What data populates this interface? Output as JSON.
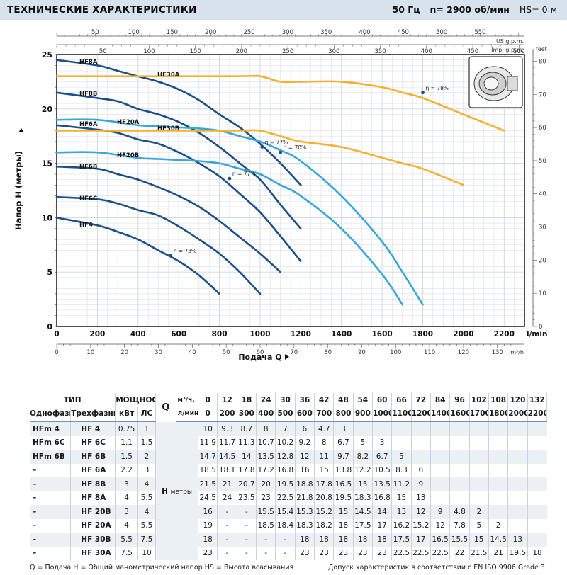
{
  "header": {
    "title": "ТЕХНИЧЕСКИЕ ХАРАКТЕРИСТИКИ",
    "freq": "50 Гц",
    "speed": "n= 2900  об/мин",
    "hs": "HS= 0 м"
  },
  "chart_data": {
    "type": "line",
    "title": "ТЕХНИЧЕСКИЕ ХАРАКТЕРИСТИКИ",
    "xlabel": "Подача Q",
    "ylabel": "Напор Н (метры)",
    "x_unit": "l/min",
    "x2_unit": "m³/h",
    "y2_unit": "feet",
    "top_axis_us_unit": "US g.p.m.",
    "top_axis_imp_unit": "Imp. g.p.m.",
    "xlim": [
      0,
      2300
    ],
    "ylim": [
      0,
      25
    ],
    "x_ticks": [
      0,
      200,
      400,
      600,
      800,
      1000,
      1200,
      1400,
      1600,
      1800,
      2000,
      2200
    ],
    "y_ticks": [
      0,
      5,
      10,
      15,
      20,
      25
    ],
    "feet_ticks": [
      0,
      10,
      20,
      30,
      40,
      50,
      60,
      70,
      80
    ],
    "m3h_ticks": [
      0,
      10,
      20,
      30,
      40,
      50,
      60,
      70,
      80,
      90,
      100,
      110,
      120,
      130
    ],
    "us_gpm_ticks": [
      50,
      100,
      150,
      200,
      250,
      300,
      350,
      400,
      450,
      500,
      550
    ],
    "imp_gpm_ticks": [
      50,
      100,
      150,
      200,
      250,
      300,
      350,
      400,
      450,
      500
    ],
    "colors": {
      "dark": "#1c4f86",
      "light": "#39a6d8",
      "orange": "#f2b12f"
    },
    "series": [
      {
        "name": "HF8A",
        "color": "dark",
        "x": [
          0,
          200,
          300,
          400,
          500,
          600,
          700,
          800,
          900,
          1000,
          1100,
          1200
        ],
        "y": [
          24.5,
          24,
          23.5,
          23,
          22.5,
          21.8,
          20.8,
          19.5,
          18.3,
          16.8,
          15,
          13
        ]
      },
      {
        "name": "HF8B",
        "color": "dark",
        "x": [
          0,
          200,
          300,
          400,
          500,
          600,
          700,
          800,
          900,
          1000,
          1100,
          1200
        ],
        "y": [
          21.5,
          21,
          20.7,
          20,
          19.5,
          18.8,
          17.8,
          16.5,
          15,
          13.5,
          11.2,
          9
        ]
      },
      {
        "name": "HF6A",
        "color": "dark",
        "x": [
          0,
          200,
          300,
          400,
          500,
          600,
          700,
          800,
          900,
          1000,
          1100,
          1200
        ],
        "y": [
          18.5,
          18.1,
          17.8,
          17.2,
          16.8,
          16,
          15,
          13.8,
          12.2,
          10.5,
          8.3,
          6
        ]
      },
      {
        "name": "HF6B",
        "color": "dark",
        "x": [
          0,
          200,
          300,
          400,
          500,
          600,
          700,
          800,
          900,
          1000,
          1100
        ],
        "y": [
          14.7,
          14.5,
          14,
          13.5,
          12.8,
          12,
          11,
          9.7,
          8.2,
          6.7,
          5
        ]
      },
      {
        "name": "HF6C",
        "color": "dark",
        "x": [
          0,
          200,
          300,
          400,
          500,
          600,
          700,
          800,
          900,
          1000
        ],
        "y": [
          11.9,
          11.7,
          11.3,
          10.7,
          10.2,
          9.2,
          8,
          6.7,
          5,
          3
        ]
      },
      {
        "name": "HF4",
        "color": "dark",
        "x": [
          0,
          200,
          300,
          400,
          500,
          600,
          700,
          800
        ],
        "y": [
          10,
          9.3,
          8.7,
          8,
          7,
          6,
          4.7,
          3
        ]
      },
      {
        "name": "HF20A",
        "color": "light",
        "x": [
          0,
          200,
          400,
          500,
          600,
          700,
          800,
          900,
          1000,
          1100,
          1200,
          1400,
          1600,
          1700,
          1800
        ],
        "y": [
          19,
          19,
          18.5,
          18.4,
          18.3,
          18.2,
          18,
          17.5,
          17,
          16.2,
          15.2,
          12,
          7.8,
          5,
          2
        ]
      },
      {
        "name": "HF20B",
        "color": "light",
        "x": [
          0,
          200,
          400,
          500,
          600,
          700,
          800,
          900,
          1000,
          1100,
          1200,
          1400,
          1600,
          1700
        ],
        "y": [
          16,
          16,
          15.5,
          15.4,
          15.3,
          15.2,
          15,
          14.5,
          14,
          13,
          12,
          9,
          4.8,
          2
        ]
      },
      {
        "name": "HF30A",
        "color": "orange",
        "x": [
          0,
          200,
          500,
          600,
          700,
          800,
          900,
          1000,
          1100,
          1200,
          1400,
          1600,
          1700,
          1800,
          2000,
          2200
        ],
        "y": [
          23,
          23,
          23,
          23,
          23,
          23,
          23,
          23,
          22.5,
          22.5,
          22.5,
          22,
          21.5,
          21,
          19.5,
          18
        ]
      },
      {
        "name": "HF30B",
        "color": "orange",
        "x": [
          0,
          200,
          700,
          800,
          900,
          1000,
          1100,
          1200,
          1400,
          1600,
          1700,
          1800,
          2000
        ],
        "y": [
          18,
          18,
          18,
          18,
          18,
          18,
          17.5,
          17,
          16.5,
          15.5,
          15,
          14.5,
          13
        ]
      }
    ],
    "efficiency_labels": [
      {
        "text": "η = 73%",
        "x": 560,
        "y": 6.5
      },
      {
        "text": "η = 77%",
        "x": 850,
        "y": 13.6
      },
      {
        "text": "η = 77%",
        "x": 1010,
        "y": 16.5
      },
      {
        "text": "η = 70%",
        "x": 1100,
        "y": 16.0
      },
      {
        "text": "η = 78%",
        "x": 1800,
        "y": 21.5
      }
    ]
  },
  "table": {
    "head": {
      "type": "ТИП",
      "power": "МОЩНОСТЬ",
      "single": "Однофазный",
      "three": "Трехфазный",
      "kw": "кВт",
      "hp": "ЛС",
      "q": "Q",
      "m3h_label": "м³/ч.",
      "lmin_label": "л/мин.",
      "h_label": "Н",
      "h_unit": "метры"
    },
    "q_m3h": [
      "0",
      "12",
      "18",
      "24",
      "30",
      "36",
      "42",
      "48",
      "54",
      "60",
      "66",
      "72",
      "84",
      "96",
      "102",
      "108",
      "120",
      "132"
    ],
    "q_lmin": [
      "0",
      "200",
      "300",
      "400",
      "500",
      "600",
      "700",
      "800",
      "900",
      "1000",
      "1100",
      "1200",
      "1400",
      "1600",
      "1700",
      "1800",
      "2000",
      "2200"
    ],
    "rows": [
      {
        "single": "HFm 4",
        "three": "HF 4",
        "kw": "0.75",
        "hp": "1",
        "h": [
          "10",
          "9.3",
          "8.7",
          "8",
          "7",
          "6",
          "4.7",
          "3",
          "",
          "",
          "",
          "",
          "",
          "",
          "",
          "",
          "",
          ""
        ]
      },
      {
        "single": "HFm 6C",
        "three": "HF 6C",
        "kw": "1.1",
        "hp": "1.5",
        "h": [
          "11.9",
          "11.7",
          "11.3",
          "10.7",
          "10.2",
          "9.2",
          "8",
          "6.7",
          "5",
          "3",
          "",
          "",
          "",
          "",
          "",
          "",
          "",
          ""
        ]
      },
      {
        "single": "HFm 6B",
        "three": "HF 6B",
        "kw": "1.5",
        "hp": "2",
        "h": [
          "14.7",
          "14.5",
          "14",
          "13.5",
          "12.8",
          "12",
          "11",
          "9.7",
          "8.2",
          "6.7",
          "5",
          "",
          "",
          "",
          "",
          "",
          "",
          ""
        ]
      },
      {
        "single": "–",
        "three": "HF 6A",
        "kw": "2.2",
        "hp": "3",
        "h": [
          "18.5",
          "18.1",
          "17.8",
          "17.2",
          "16.8",
          "16",
          "15",
          "13.8",
          "12.2",
          "10.5",
          "8.3",
          "6",
          "",
          "",
          "",
          "",
          "",
          ""
        ]
      },
      {
        "single": "–",
        "three": "HF 8B",
        "kw": "3",
        "hp": "4",
        "h": [
          "21.5",
          "21",
          "20.7",
          "20",
          "19.5",
          "18.8",
          "17.8",
          "16.5",
          "15",
          "13.5",
          "11.2",
          "9",
          "",
          "",
          "",
          "",
          "",
          ""
        ]
      },
      {
        "single": "–",
        "three": "HF 8A",
        "kw": "4",
        "hp": "5.5",
        "h": [
          "24.5",
          "24",
          "23.5",
          "23",
          "22.5",
          "21.8",
          "20.8",
          "19.5",
          "18.3",
          "16.8",
          "15",
          "13",
          "",
          "",
          "",
          "",
          "",
          ""
        ]
      },
      {
        "single": "–",
        "three": "HF 20B",
        "kw": "3",
        "hp": "4",
        "h": [
          "16",
          "-",
          "-",
          "15.5",
          "15.4",
          "15.3",
          "15.2",
          "15",
          "14.5",
          "14",
          "13",
          "12",
          "9",
          "4.8",
          "2",
          "",
          "",
          ""
        ]
      },
      {
        "single": "–",
        "three": "HF 20A",
        "kw": "4",
        "hp": "5.5",
        "h": [
          "19",
          "-",
          "-",
          "18.5",
          "18.4",
          "18.3",
          "18.2",
          "18",
          "17.5",
          "17",
          "16.2",
          "15.2",
          "12",
          "7.8",
          "5",
          "2",
          "",
          ""
        ]
      },
      {
        "single": "–",
        "three": "HF 30B",
        "kw": "5.5",
        "hp": "7.5",
        "h": [
          "18",
          "-",
          "-",
          "-",
          "-",
          "18",
          "18",
          "18",
          "18",
          "18",
          "17.5",
          "17",
          "16.5",
          "15.5",
          "15",
          "14.5",
          "13",
          ""
        ]
      },
      {
        "single": "–",
        "three": "HF 30A",
        "kw": "7.5",
        "hp": "10",
        "h": [
          "23",
          "-",
          "-",
          "-",
          "-",
          "23",
          "23",
          "23",
          "23",
          "23",
          "22.5",
          "22.5",
          "22.5",
          "22",
          "21.5",
          "21",
          "19.5",
          "18"
        ]
      }
    ]
  },
  "footer": {
    "legend": "Q = Подача   Н = Общий манометрический напор   HS = Высота всасывания",
    "tolerance": "Допуск характеристик в соответствии с EN ISO 9906 Grade 3."
  }
}
